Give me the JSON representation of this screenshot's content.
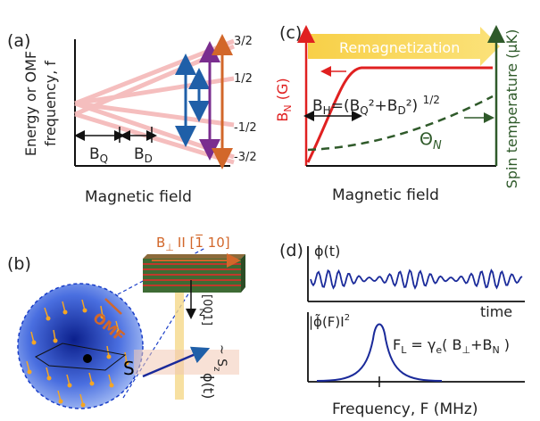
{
  "panel_a": {
    "label": "(a)",
    "ylabel_line1": "Energy  or OMF",
    "ylabel_line2": "frequency, f",
    "xlabel": "Magnetic field",
    "levels": [
      "3/2",
      "1/2",
      "-1/2",
      "-3/2"
    ],
    "bq": "B",
    "bq_sub": "Q",
    "bd": "B",
    "bd_sub": "D"
  },
  "panel_b": {
    "label": "(b)",
    "field_label": "B",
    "field_sub": "⊥",
    "field_dir": "II [1̅ 10]",
    "axis_001": "[001]",
    "axis_z": "z",
    "omf": "OMF",
    "spin": "S",
    "sz": "~ S",
    "sz_sub": "z",
    "phi": "ϕ(t)"
  },
  "panel_c": {
    "label": "(c)",
    "banner": "Remagnetization",
    "bn": "B",
    "bn_sub": "N",
    "bn_unit": " (G)",
    "formula": "B",
    "formula_sub_h": "H",
    "formula_rest1": "=(B",
    "formula_sub_q": "Q",
    "formula_rest2": "+B",
    "formula_sub_d": "D",
    "formula_rest3": ") ",
    "formula_power": "1/2",
    "theta": "Θ",
    "theta_sub": "N",
    "xlabel": "Magnetic field",
    "ylabel_right": "Spin temperature (μK)"
  },
  "panel_d": {
    "label": "(d)",
    "phi_t": "ϕ(t)",
    "time": "time",
    "phi_f": "|ϕ̃(F)I",
    "fl_eq": "F",
    "fl_sub": "L",
    "fl_rest1": " = γ",
    "fl_sub_e": "e",
    "fl_rest2": "( B",
    "fl_sub_perp": "⊥",
    "fl_rest3": "+B",
    "fl_sub_n": "N",
    "fl_rest4": " )",
    "xlabel": "Frequency, F (MHz)"
  },
  "colors": {
    "pink": "#f4b8b8",
    "blue": "#1f5fa8",
    "purple": "#7a2d8f",
    "orange": "#d2672a",
    "red": "#e02020",
    "green": "#2f5a2a",
    "gold": "#f5c542",
    "navy": "#1a2a9a"
  }
}
